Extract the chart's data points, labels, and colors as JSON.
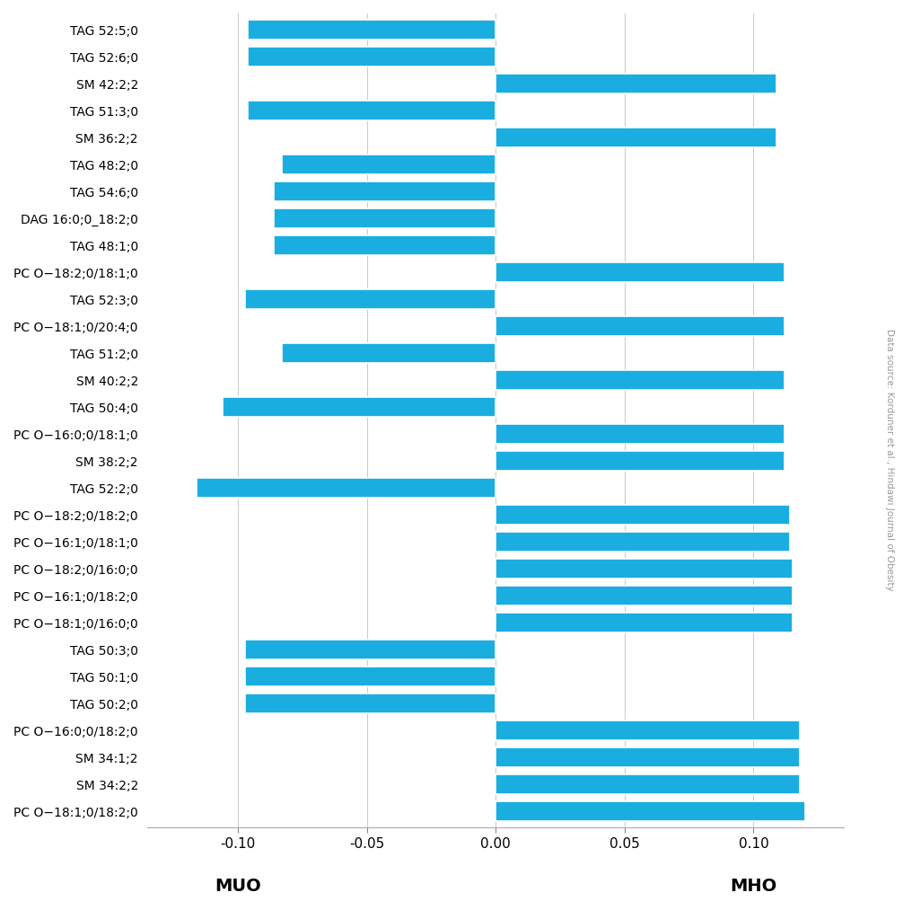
{
  "labels": [
    "TAG 52:5;0",
    "TAG 52:6;0",
    "SM 42:2;2",
    "TAG 51:3;0",
    "SM 36:2;2",
    "TAG 48:2;0",
    "TAG 54:6;0",
    "DAG 16:0;0_18:2;0",
    "TAG 48:1;0",
    "PC O−18:2;0/18:1;0",
    "TAG 52:3;0",
    "PC O−18:1;0/20:4;0",
    "TAG 51:2;0",
    "SM 40:2;2",
    "TAG 50:4;0",
    "PC O−16:0;0/18:1;0",
    "SM 38:2;2",
    "TAG 52:2;0",
    "PC O−18:2;0/18:2;0",
    "PC O−16:1;0/18:1;0",
    "PC O−18:2;0/16:0;0",
    "PC O−16:1;0/18:2;0",
    "PC O−18:1;0/16:0;0",
    "TAG 50:3;0",
    "TAG 50:1;0",
    "TAG 50:2;0",
    "PC O−16:0;0/18:2;0",
    "SM 34:1;2",
    "SM 34:2;2",
    "PC O−18:1;0/18:2;0"
  ],
  "values": [
    -0.096,
    -0.096,
    0.109,
    -0.096,
    0.109,
    -0.083,
    -0.086,
    -0.086,
    -0.086,
    0.112,
    -0.097,
    0.112,
    -0.083,
    0.112,
    -0.106,
    0.112,
    0.112,
    -0.116,
    0.114,
    0.114,
    0.115,
    0.115,
    0.115,
    -0.097,
    -0.097,
    -0.097,
    0.118,
    0.118,
    0.118,
    0.12
  ],
  "bar_color": "#1aaee0",
  "bg_color": "#ffffff",
  "xlim": [
    -0.135,
    0.135
  ],
  "xticks": [
    -0.1,
    -0.05,
    0.0,
    0.05,
    0.1
  ],
  "xlabel_left": "MUO",
  "xlabel_right": "MHO",
  "grid_color": "#cccccc",
  "annotation": "Data source: Korduner et al., Hindawi Journal of Obesity",
  "bar_height": 0.72
}
